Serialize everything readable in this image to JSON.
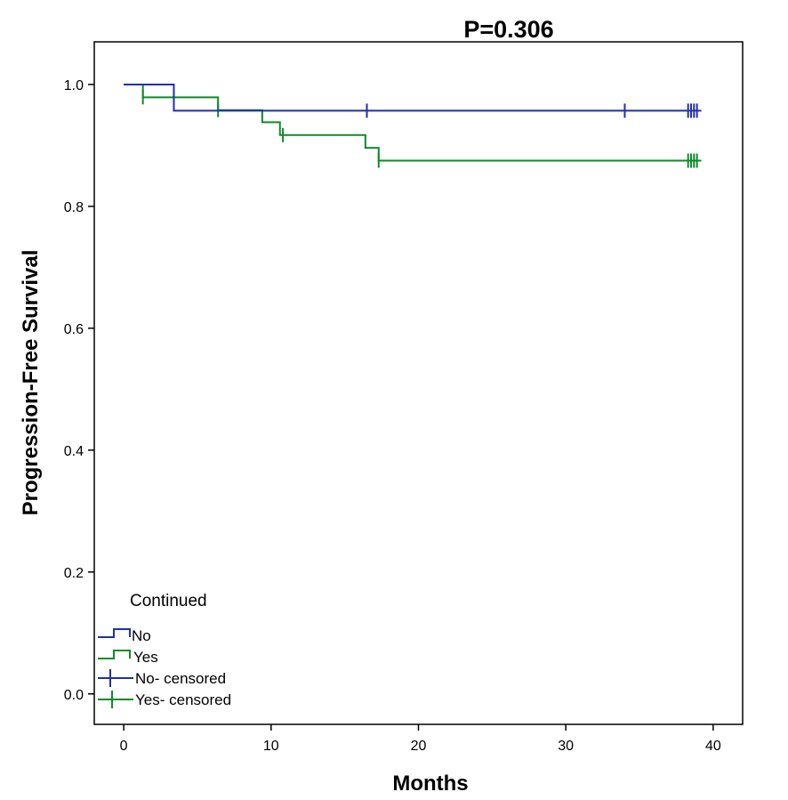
{
  "chart_data": {
    "type": "line",
    "title": "P=0.306",
    "xlabel": "Months",
    "ylabel": "Progression-Free Survival",
    "xlim": [
      -2,
      42
    ],
    "ylim": [
      -0.05,
      1.07
    ],
    "xticks": [
      0,
      10,
      20,
      30,
      40
    ],
    "yticks": [
      0.0,
      0.2,
      0.4,
      0.6,
      0.8,
      1.0
    ],
    "xtick_labels": [
      "0",
      "10",
      "20",
      "30",
      "40"
    ],
    "ytick_labels": [
      "0.0",
      "0.2",
      "0.4",
      "0.6",
      "0.8",
      "1.0"
    ],
    "grid": false,
    "legend": {
      "title": "Continued",
      "position": "bottom-left",
      "entries": [
        "No",
        "Yes",
        "No- censored",
        "Yes- censored"
      ]
    },
    "series": [
      {
        "name": "No",
        "color": "#1f2fb0",
        "steps": [
          [
            0,
            1.0
          ],
          [
            3.4,
            0.957
          ],
          [
            39.2,
            0.957
          ]
        ],
        "censored": [
          16.5,
          34.0,
          38.3,
          38.5,
          38.7,
          38.9
        ]
      },
      {
        "name": "Yes",
        "color": "#0f8a2a",
        "steps": [
          [
            0,
            1.0
          ],
          [
            1.3,
            0.979
          ],
          [
            6.4,
            0.958
          ],
          [
            9.4,
            0.938
          ],
          [
            10.6,
            0.917
          ],
          [
            16.4,
            0.896
          ],
          [
            17.3,
            0.875
          ],
          [
            39.2,
            0.875
          ]
        ],
        "censored": [
          1.3,
          6.4,
          10.8,
          17.3,
          38.3,
          38.5,
          38.7,
          38.9
        ]
      }
    ]
  }
}
